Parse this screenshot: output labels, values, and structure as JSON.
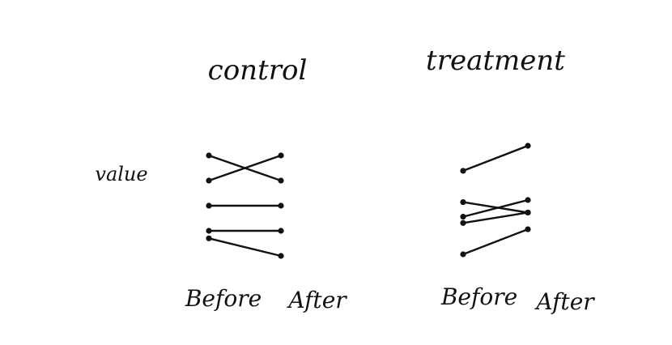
{
  "panels": [
    {
      "title": "control",
      "x_labels": [
        "Before",
        "After"
      ],
      "pairs": [
        {
          "before": 5.0,
          "after": 4.0
        },
        {
          "before": 4.0,
          "after": 5.0
        },
        {
          "before": 3.0,
          "after": 3.0
        },
        {
          "before": 2.0,
          "after": 2.0
        },
        {
          "before": 1.7,
          "after": 1.0
        }
      ]
    },
    {
      "title": "treatment",
      "x_labels": [
        "Before",
        "After"
      ],
      "pairs": [
        {
          "before": 5.0,
          "after": 6.2
        },
        {
          "before": 3.5,
          "after": 3.0
        },
        {
          "before": 2.8,
          "after": 3.6
        },
        {
          "before": 2.5,
          "after": 3.0
        },
        {
          "before": 1.0,
          "after": 2.2
        }
      ]
    }
  ],
  "y_label": "value",
  "style": {
    "ink": "#111111",
    "background": "#ffffff"
  }
}
